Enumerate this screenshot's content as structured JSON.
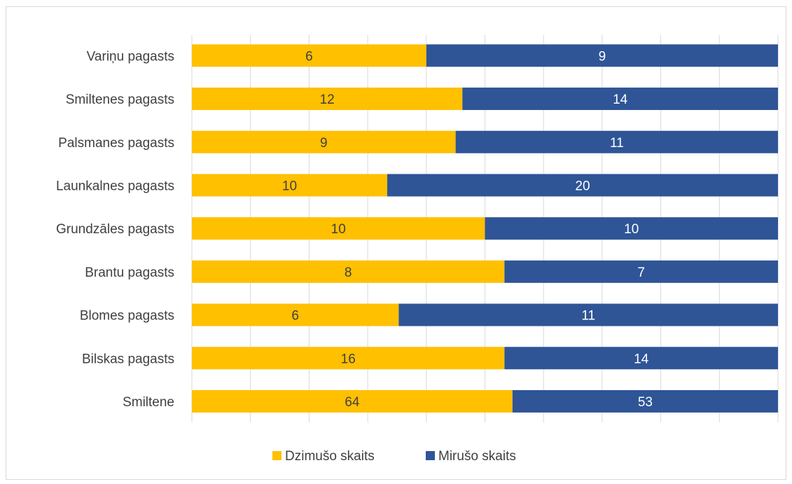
{
  "chart_data": {
    "type": "bar",
    "orientation": "horizontal",
    "stacked": "percent",
    "categories": [
      "Variņu pagasts",
      "Smiltenes pagasts",
      "Palsmanes pagasts",
      "Launkalnes pagasts",
      "Grundzāles pagasts",
      "Brantu pagasts",
      "Blomes pagasts",
      "Bilskas pagasts",
      "Smiltene"
    ],
    "series": [
      {
        "name": "Dzimušo skaits",
        "color": "#FFC000",
        "label_color": "#404040",
        "values": [
          6,
          12,
          9,
          10,
          10,
          8,
          6,
          16,
          64
        ]
      },
      {
        "name": "Mirušo skaits",
        "color": "#2F5597",
        "label_color": "#FFFFFF",
        "values": [
          9,
          14,
          11,
          20,
          10,
          7,
          11,
          14,
          53
        ]
      }
    ],
    "xlim": [
      0,
      1
    ],
    "grid": true,
    "gridlines": 10,
    "data_labels": true,
    "legend_position": "bottom",
    "title": "",
    "xlabel": "",
    "ylabel": ""
  }
}
